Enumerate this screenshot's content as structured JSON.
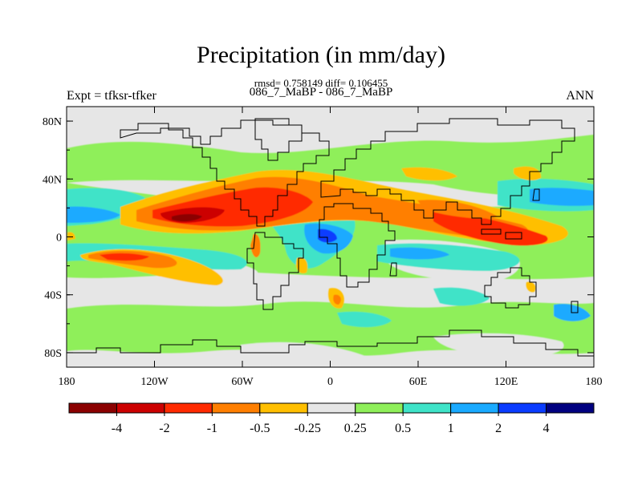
{
  "title": "Precipitation (in mm/day)",
  "stats_line": "rmsd= 0.758149 diff= 0.106455",
  "case_line": "086_7_MaBP - 086_7_MaBP",
  "left_string": "Expt = tfksr-tfker",
  "right_string": "ANN",
  "lat_ticks": [
    "80N",
    "40N",
    "0",
    "40S",
    "80S"
  ],
  "lon_ticks": [
    "180",
    "120W",
    "60W",
    "0",
    "60E",
    "120E",
    "180"
  ],
  "colorbar": {
    "labels": [
      "-4",
      "-2",
      "-1",
      "-0.5",
      "-0.25",
      "0.25",
      "0.5",
      "1",
      "2",
      "4"
    ],
    "colors": [
      "#8b0000",
      "#cc0000",
      "#ff2a00",
      "#ff7f00",
      "#ffbf00",
      "#e6e6e6",
      "#8fef5a",
      "#3fe3c8",
      "#1aaaff",
      "#0a3cff",
      "#000080"
    ]
  }
}
